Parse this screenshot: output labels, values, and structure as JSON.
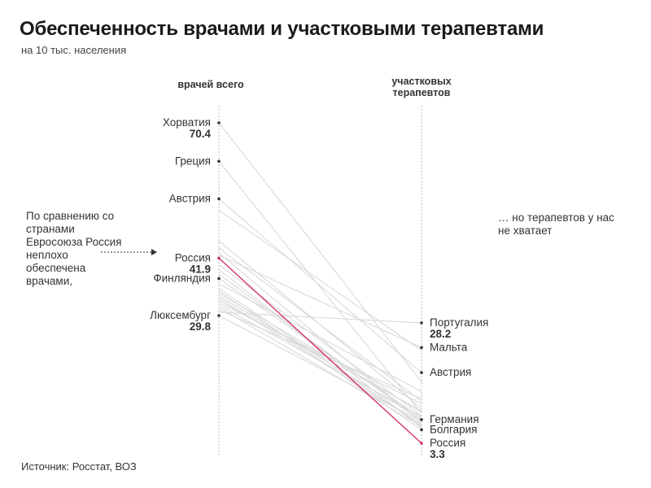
{
  "title": "Обеспеченность врачами и участковыми терапевтами",
  "subtitle": "на 10 тыс. населения",
  "source": "Источник: Росстат, ВОЗ",
  "annotation_left": "По сравнению со странами Евросоюза Россия неплохо обеспечена врачами,",
  "annotation_right": "… но терапевтов у нас не хватает",
  "colors": {
    "highlight": "#d6336c",
    "lines": "#d9d9d9",
    "axis": "#bbbbbb",
    "text": "#333333"
  },
  "chart_data": {
    "type": "slope",
    "left_axis": {
      "label": "врачей всего",
      "range": [
        28.5,
        72.5
      ]
    },
    "right_axis": {
      "label_lines": [
        "участковых",
        "терапевтов"
      ],
      "range": [
        2.6,
        33.5
      ]
    },
    "highlight": "Россия",
    "labeled_left": [
      {
        "name": "Хорватия",
        "value": 70.4,
        "value_label": "70.4"
      },
      {
        "name": "Греция",
        "value": 62.3
      },
      {
        "name": "Австрия",
        "value": 54.4
      },
      {
        "name": "Россия",
        "value": 41.9,
        "value_label": "41.9"
      },
      {
        "name": "Финляндия",
        "value": 37.6
      },
      {
        "name": "Люксембург",
        "value": 29.8,
        "value_label": "29.8"
      }
    ],
    "labeled_right": [
      {
        "name": "Португалия",
        "value": 28.2,
        "value_label": "28.2"
      },
      {
        "name": "Мальта",
        "value": 23.1
      },
      {
        "name": "Австрия",
        "value": 17.9
      },
      {
        "name": "Германия",
        "value": 8.2
      },
      {
        "name": "Болгария",
        "value": 6.1
      },
      {
        "name": "Россия",
        "value": 3.3,
        "value_label": "3.3"
      }
    ],
    "lines": [
      {
        "left": 70.4,
        "right": 16.0
      },
      {
        "left": 62.3,
        "right": 9.5
      },
      {
        "left": 54.4,
        "right": 17.9
      },
      {
        "left": 52.0,
        "right": 22.5
      },
      {
        "left": 45.5,
        "right": 10.5
      },
      {
        "left": 44.0,
        "right": 12.0
      },
      {
        "left": 43.0,
        "right": 7.5
      },
      {
        "left": 42.5,
        "right": 23.1
      },
      {
        "left": 41.9,
        "right": 3.3
      },
      {
        "left": 40.5,
        "right": 9.0
      },
      {
        "left": 39.5,
        "right": 6.5
      },
      {
        "left": 38.5,
        "right": 8.0
      },
      {
        "left": 37.6,
        "right": 8.5
      },
      {
        "left": 36.5,
        "right": 14.0
      },
      {
        "left": 35.5,
        "right": 7.0
      },
      {
        "left": 35.0,
        "right": 6.1
      },
      {
        "left": 34.5,
        "right": 9.8
      },
      {
        "left": 34.0,
        "right": 8.2
      },
      {
        "left": 33.5,
        "right": 7.2
      },
      {
        "left": 33.0,
        "right": 10.0
      },
      {
        "left": 32.5,
        "right": 11.5
      },
      {
        "left": 32.0,
        "right": 8.8
      },
      {
        "left": 31.5,
        "right": 6.8
      },
      {
        "left": 31.0,
        "right": 12.5
      },
      {
        "left": 30.5,
        "right": 28.2
      },
      {
        "left": 29.8,
        "right": 7.8
      }
    ]
  }
}
